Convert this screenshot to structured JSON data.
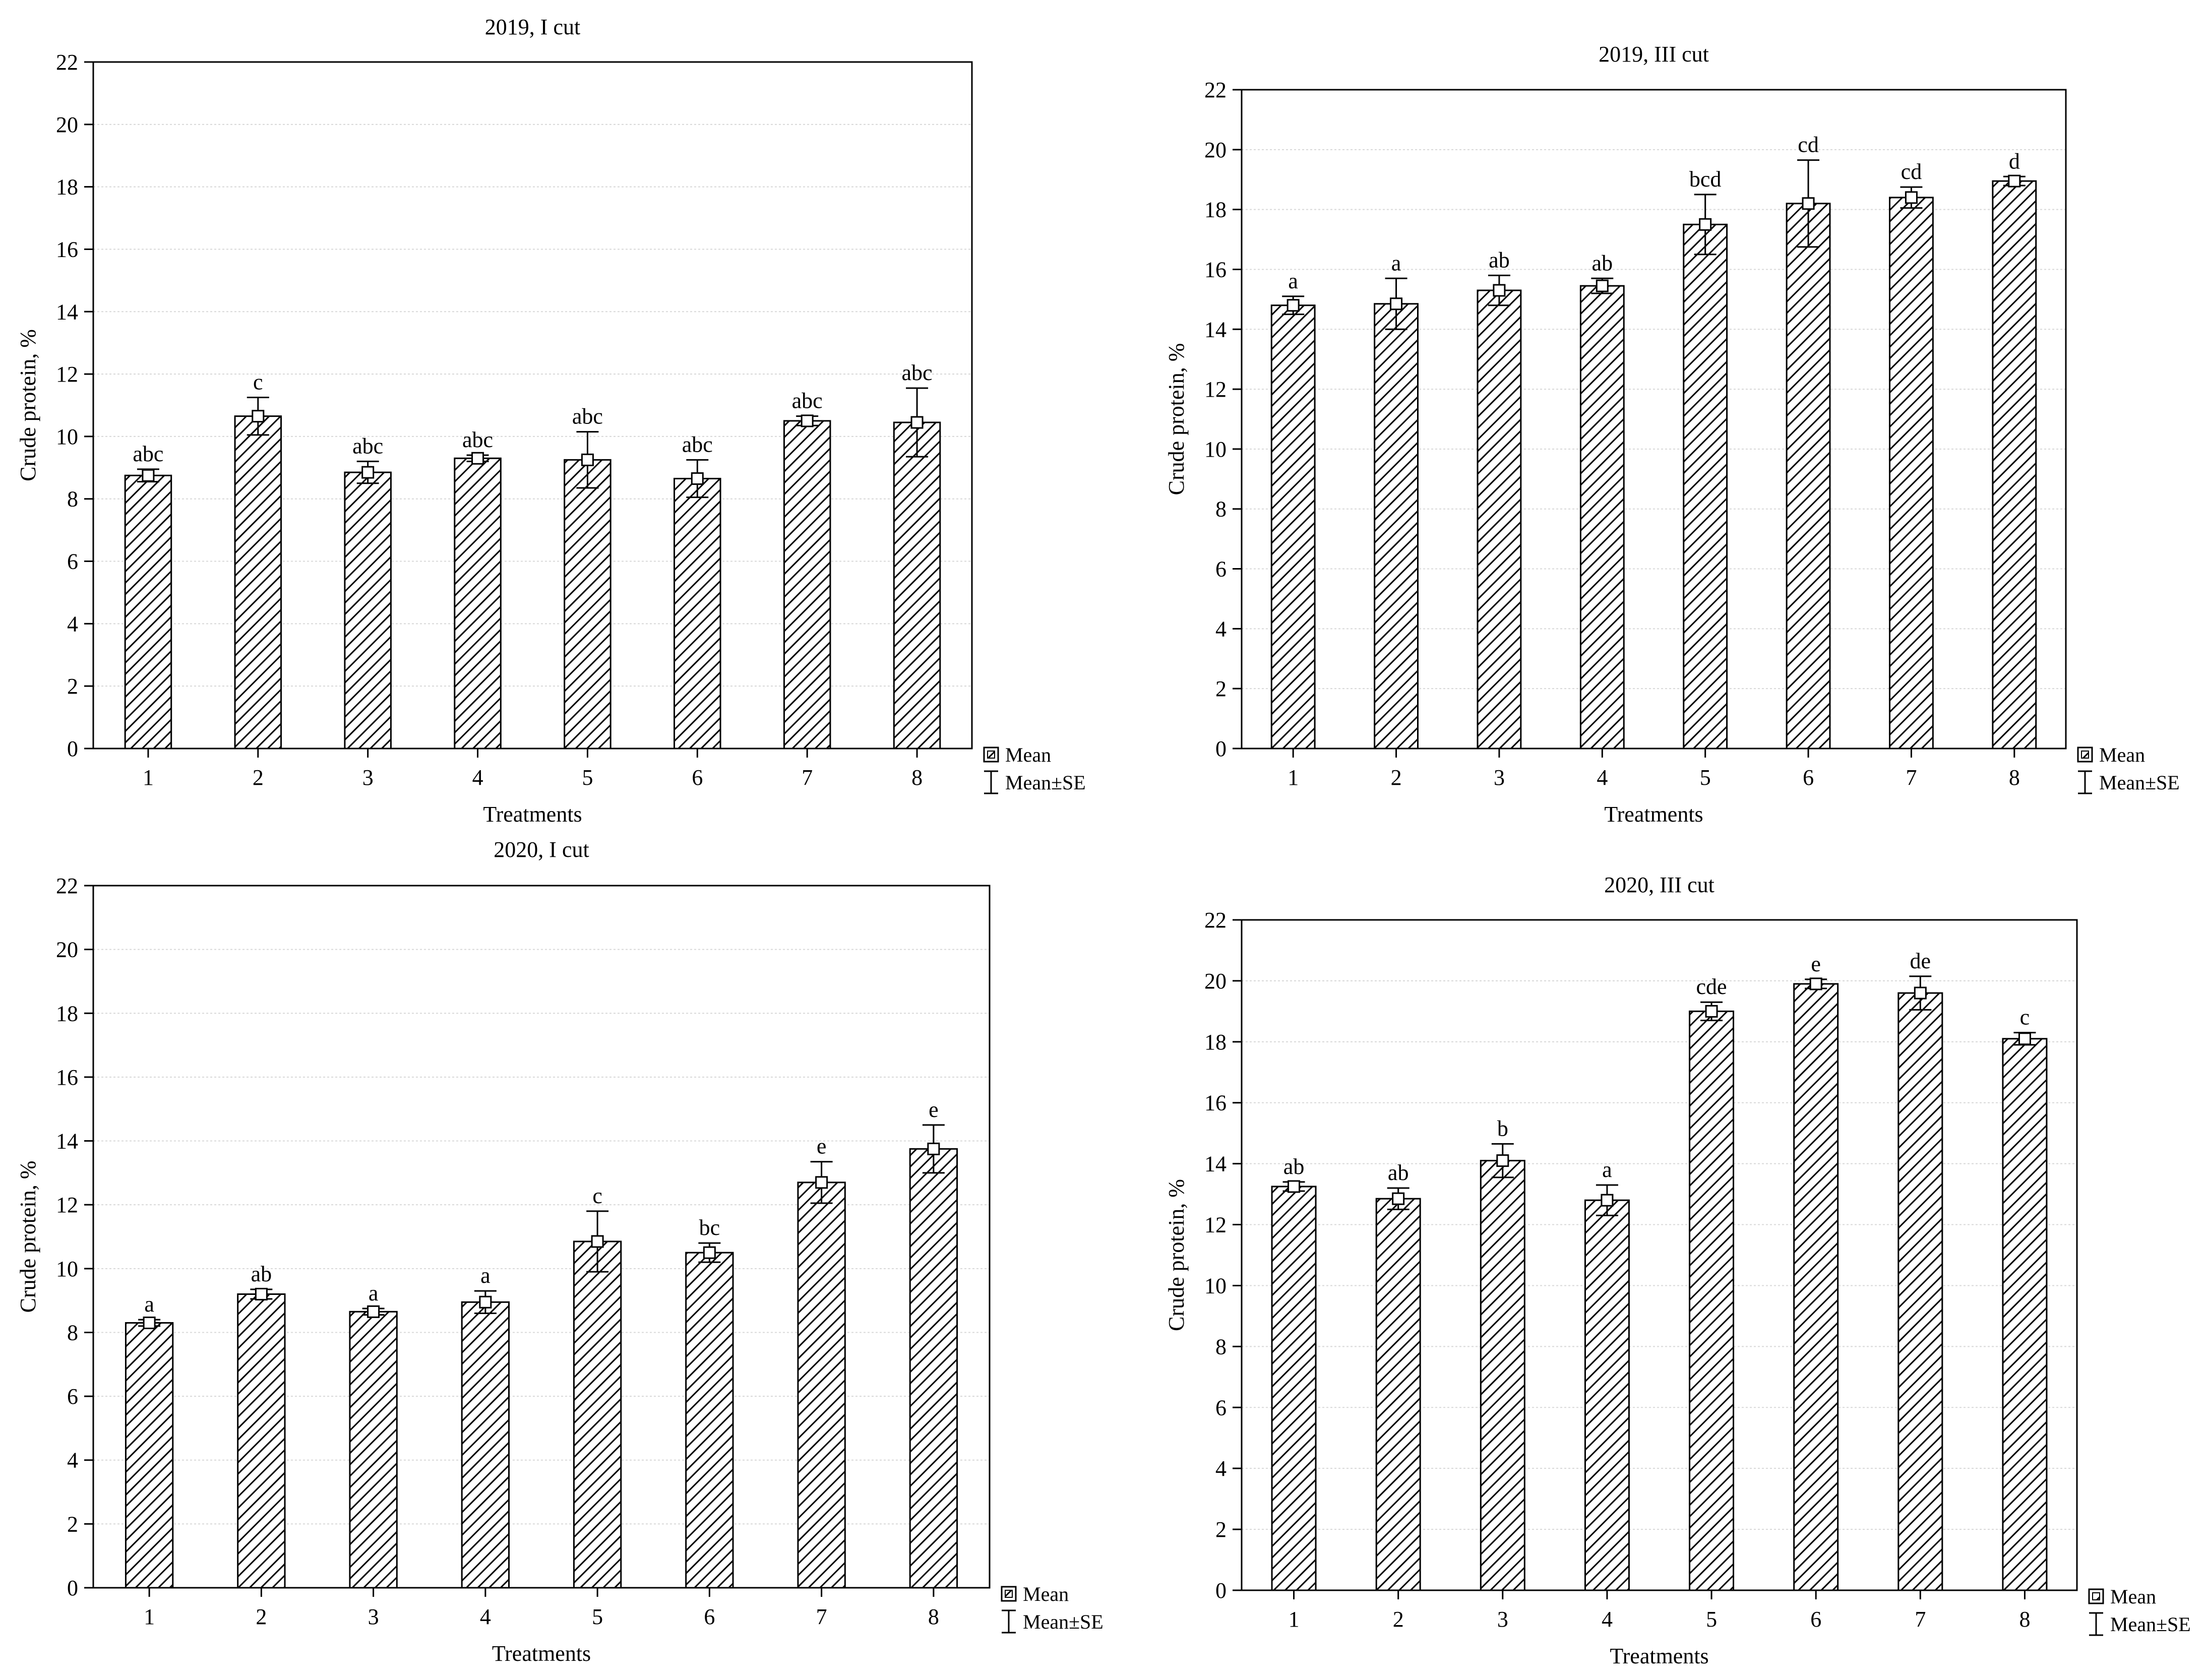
{
  "chart_data": [
    {
      "type": "bar",
      "title": "2019, I cut",
      "xlabel": "Treatments",
      "ylabel": "Crude protein, %",
      "ylim": [
        0,
        22
      ],
      "yticks": [
        0,
        2,
        4,
        6,
        8,
        10,
        12,
        14,
        16,
        18,
        20,
        22
      ],
      "categories": [
        "1",
        "2",
        "3",
        "4",
        "5",
        "6",
        "7",
        "8"
      ],
      "values": [
        8.75,
        10.65,
        8.85,
        9.3,
        9.25,
        8.65,
        10.5,
        10.45
      ],
      "se": [
        0.2,
        0.6,
        0.35,
        0.1,
        0.9,
        0.6,
        0.15,
        1.1
      ],
      "letters": [
        "abc",
        "c",
        "abc",
        "abc",
        "abc",
        "abc",
        "abc",
        "abc"
      ],
      "grid": true,
      "legend": {
        "position": "right-bottom",
        "items": [
          "Mean",
          "Mean±SE"
        ]
      }
    },
    {
      "type": "bar",
      "title": "2019, III cut",
      "xlabel": "Treatments",
      "ylabel": "Crude protein, %",
      "ylim": [
        0,
        22
      ],
      "yticks": [
        0,
        2,
        4,
        6,
        8,
        10,
        12,
        14,
        16,
        18,
        20,
        22
      ],
      "categories": [
        "1",
        "2",
        "3",
        "4",
        "5",
        "6",
        "7",
        "8"
      ],
      "values": [
        14.8,
        14.85,
        15.3,
        15.45,
        17.5,
        18.2,
        18.4,
        18.95
      ],
      "se": [
        0.3,
        0.85,
        0.5,
        0.25,
        1.0,
        1.45,
        0.35,
        0.15
      ],
      "letters": [
        "a",
        "a",
        "ab",
        "ab",
        "bcd",
        "cd",
        "cd",
        "d"
      ],
      "grid": true,
      "legend": {
        "position": "right-bottom",
        "items": [
          "Mean",
          "Mean±SE"
        ]
      }
    },
    {
      "type": "bar",
      "title": "2020, I cut",
      "xlabel": "Treatments",
      "ylabel": "Crude protein, %",
      "ylim": [
        0,
        22
      ],
      "yticks": [
        0,
        2,
        4,
        6,
        8,
        10,
        12,
        14,
        16,
        18,
        20,
        22
      ],
      "categories": [
        "1",
        "2",
        "3",
        "4",
        "5",
        "6",
        "7",
        "8"
      ],
      "values": [
        8.3,
        9.2,
        8.65,
        8.95,
        10.85,
        10.5,
        12.7,
        13.75
      ],
      "se": [
        0.1,
        0.15,
        0.1,
        0.35,
        0.95,
        0.3,
        0.65,
        0.75
      ],
      "letters": [
        "a",
        "ab",
        "a",
        "a",
        "c",
        "bc",
        "e",
        "e"
      ],
      "grid": true,
      "legend": {
        "position": "right-bottom",
        "items": [
          "Mean",
          "Mean±SE"
        ]
      }
    },
    {
      "type": "bar",
      "title": "2020, III cut",
      "xlabel": "Treatments",
      "ylabel": "Crude protein, %",
      "ylim": [
        0,
        22
      ],
      "yticks": [
        0,
        2,
        4,
        6,
        8,
        10,
        12,
        14,
        16,
        18,
        20,
        22
      ],
      "categories": [
        "1",
        "2",
        "3",
        "4",
        "5",
        "6",
        "7",
        "8"
      ],
      "values": [
        13.25,
        12.85,
        14.1,
        12.8,
        19.0,
        19.9,
        19.6,
        18.1
      ],
      "se": [
        0.15,
        0.35,
        0.55,
        0.5,
        0.3,
        0.15,
        0.55,
        0.2
      ],
      "letters": [
        "ab",
        "ab",
        "b",
        "a",
        "cde",
        "e",
        "de",
        "c"
      ],
      "grid": true,
      "legend": {
        "position": "right-bottom",
        "items": [
          "Mean",
          "Mean±SE"
        ]
      }
    }
  ]
}
